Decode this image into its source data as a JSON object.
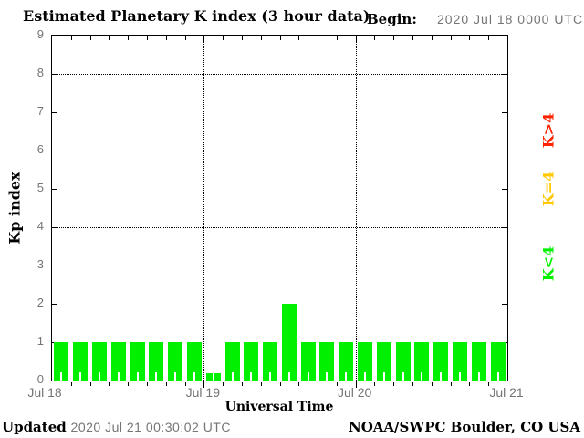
{
  "header": {
    "title": "Estimated Planetary K index (3 hour data)",
    "begin_label": "Begin:",
    "begin_value": "2020 Jul 18 0000 UTC"
  },
  "footer": {
    "updated_label": "Updated",
    "updated_value": "2020 Jul 21 00:30:02 UTC",
    "credit": "NOAA/SWPC Boulder, CO USA"
  },
  "chart_data": {
    "type": "bar",
    "title": "Estimated Planetary K index (3 hour data)",
    "xlabel": "Universal Time",
    "ylabel": "Kp index",
    "ylim": [
      0,
      9
    ],
    "yticks": [
      0,
      1,
      2,
      3,
      4,
      5,
      6,
      7,
      8,
      9
    ],
    "x_day_labels": [
      "Jul 18",
      "Jul 19",
      "Jul 20",
      "Jul 21"
    ],
    "interval_hours": 3,
    "bars_per_day": 8,
    "values": [
      1,
      1,
      1,
      1,
      1,
      1,
      1,
      1,
      0,
      1,
      1,
      1,
      2,
      1,
      1,
      1,
      1,
      1,
      1,
      1,
      1,
      1,
      1,
      1
    ],
    "grid": {
      "horizontal_dotted_at": [
        4,
        6,
        8
      ],
      "vertical_dotted_at_day_index": [
        1,
        2
      ]
    },
    "legend": [
      {
        "label": "K>4",
        "color": "#ff2200"
      },
      {
        "label": "K=4",
        "color": "#ffc800"
      },
      {
        "label": "K<4",
        "color": "#00f000"
      }
    ],
    "bar_color": "#00f000",
    "zero_value_stub": true
  },
  "colors": {
    "bar_green": "#00f000",
    "legend_red": "#ff2200",
    "legend_yellow": "#ffc800",
    "legend_green": "#00f000",
    "axis_black": "#000000",
    "muted_text": "#757575",
    "background": "#ffffff"
  }
}
